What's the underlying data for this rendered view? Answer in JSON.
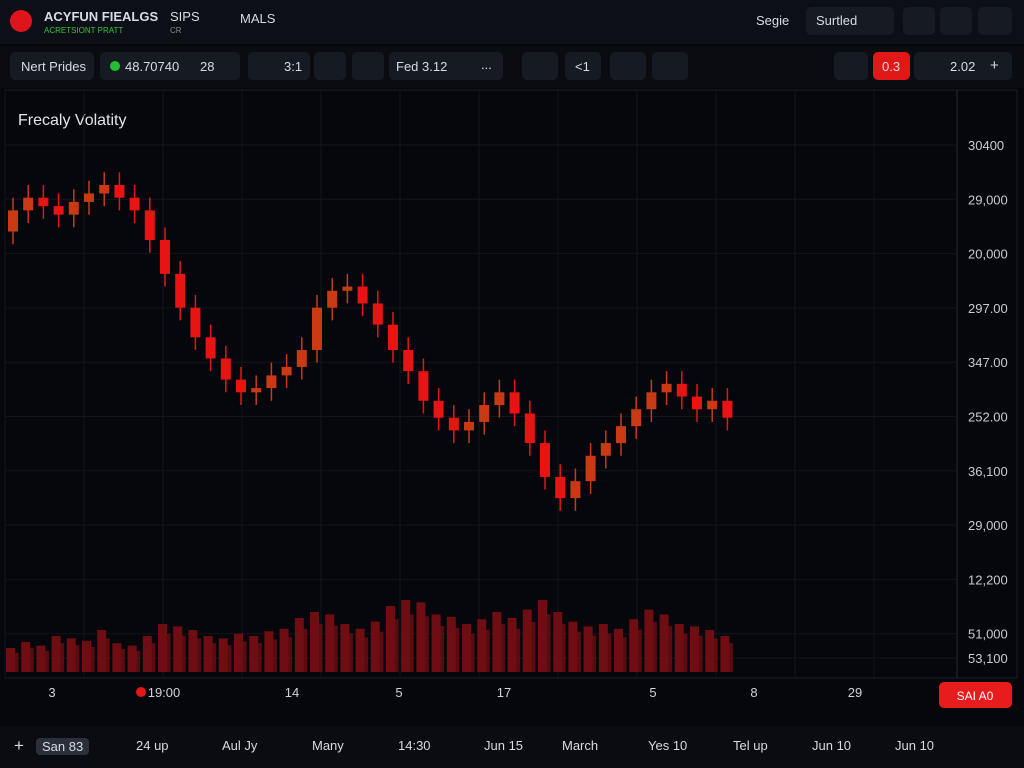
{
  "header": {
    "brand": "ACYFUN FIEALGS",
    "tagline": "ACRETSIONT PRATT",
    "tag_small": "CR",
    "menu": [
      "SIPS",
      "MALS"
    ],
    "search": "Segie",
    "sort": "Surtled"
  },
  "toolbar": {
    "preset": "Nert Prides",
    "price": "48.70740",
    "interval": "28",
    "ratio": "3:1",
    "date": "Fed 3.12",
    "more": "...",
    "back": "<1",
    "alert": "0.3",
    "count": "2.02",
    "add": "+"
  },
  "chart": {
    "title": "Frecaly Volatity",
    "ylim": [
      0,
      100
    ],
    "volume_lim": [
      0,
      100
    ],
    "up_color": "#c93a14",
    "down_color": "#e81414",
    "volume_color": "#6e0e12",
    "y_labels": [
      "30400",
      "29,000",
      "20,000",
      "297.00",
      "347.00",
      "252.00",
      "36,100",
      "29,000",
      "12,200",
      "51,000",
      "53,100"
    ],
    "x_labels": [
      "3",
      "19:00",
      "14",
      "5",
      "17",
      "5",
      "8",
      "29"
    ],
    "open": [
      80,
      85,
      88,
      86,
      84,
      87,
      89,
      91,
      88,
      85,
      78,
      70,
      62,
      55,
      50,
      45,
      42,
      43,
      46,
      48,
      52,
      62,
      66,
      67,
      63,
      58,
      52,
      47,
      40,
      36,
      33,
      35,
      39,
      42,
      37,
      30,
      22,
      17,
      21,
      27,
      30,
      34,
      38,
      42,
      44,
      41,
      38,
      40
    ],
    "high": [
      88,
      91,
      91,
      89,
      90,
      92,
      94,
      94,
      91,
      88,
      81,
      73,
      65,
      58,
      53,
      48,
      46,
      49,
      51,
      55,
      65,
      69,
      70,
      70,
      66,
      61,
      55,
      50,
      43,
      39,
      38,
      42,
      45,
      45,
      40,
      33,
      25,
      24,
      30,
      33,
      37,
      41,
      45,
      47,
      47,
      44,
      43,
      43
    ],
    "low": [
      77,
      82,
      83,
      81,
      81,
      84,
      86,
      85,
      82,
      75,
      67,
      59,
      52,
      47,
      42,
      39,
      39,
      40,
      43,
      45,
      49,
      59,
      63,
      60,
      55,
      49,
      44,
      37,
      33,
      30,
      30,
      32,
      36,
      34,
      27,
      19,
      14,
      14,
      18,
      24,
      27,
      31,
      35,
      39,
      38,
      35,
      35,
      33
    ],
    "close": [
      85,
      88,
      86,
      84,
      87,
      89,
      91,
      88,
      85,
      78,
      70,
      62,
      55,
      50,
      45,
      42,
      43,
      46,
      48,
      52,
      62,
      66,
      67,
      63,
      58,
      52,
      47,
      40,
      36,
      33,
      35,
      39,
      42,
      37,
      30,
      22,
      17,
      21,
      27,
      30,
      34,
      38,
      42,
      44,
      41,
      38,
      40,
      36
    ],
    "volumes": [
      20,
      25,
      22,
      30,
      28,
      26,
      35,
      24,
      22,
      30,
      40,
      38,
      35,
      30,
      28,
      32,
      30,
      34,
      36,
      45,
      50,
      48,
      40,
      36,
      42,
      55,
      60,
      58,
      48,
      46,
      40,
      44,
      50,
      45,
      52,
      60,
      50,
      42,
      38,
      40,
      36,
      44,
      52,
      48,
      40,
      38,
      35,
      30
    ],
    "action": "SAI A0"
  },
  "timeline": {
    "add": "+",
    "labels": [
      "San 83",
      "24 up",
      "Aul Jy",
      "Many",
      "14:30",
      "Jun 15",
      "March",
      "Yes 10",
      "Tel up",
      "Jun 10",
      "Jun 10"
    ]
  }
}
